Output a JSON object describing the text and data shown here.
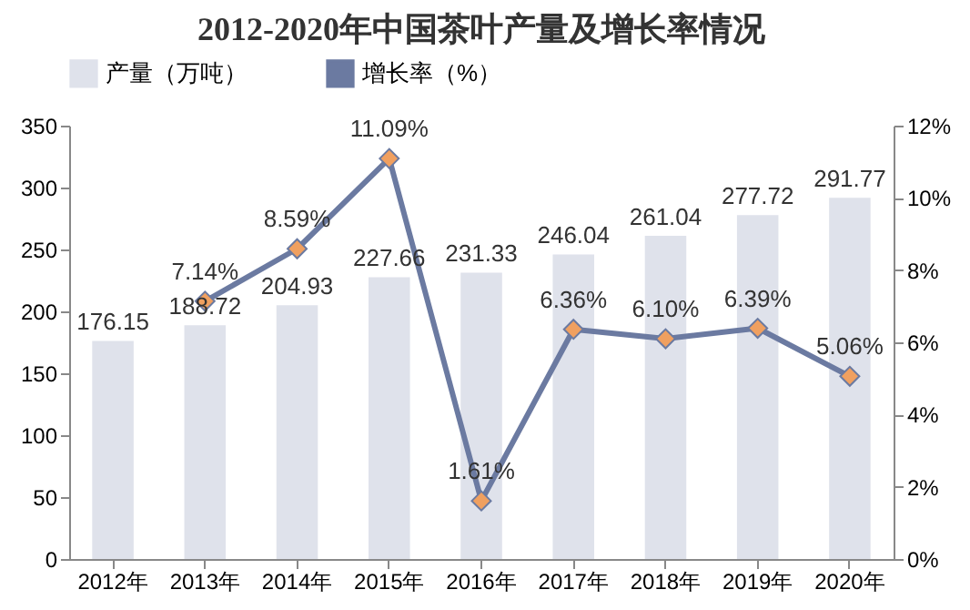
{
  "chart_data": {
    "type": "bar",
    "title": "2012-2020年中国茶叶产量及增长率情况",
    "categories": [
      "2012年",
      "2013年",
      "2014年",
      "2015年",
      "2016年",
      "2017年",
      "2018年",
      "2019年",
      "2020年"
    ],
    "series": [
      {
        "name": "产量（万吨）",
        "color": "#dfe2eb",
        "values": [
          176.15,
          188.72,
          204.93,
          227.66,
          231.33,
          246.04,
          261.04,
          277.72,
          291.77
        ],
        "value_labels": [
          "176.15",
          "188.72",
          "204.93",
          "227.66",
          "231.33",
          "246.04",
          "261.04",
          "277.72",
          "291.77"
        ]
      },
      {
        "name": "增长率（%）",
        "type": "line",
        "axis": "y2",
        "color": "#6b7aa1",
        "marker": "diamond",
        "values": [
          null,
          7.14,
          8.59,
          11.09,
          1.61,
          6.36,
          6.1,
          6.39,
          5.06
        ],
        "value_labels": [
          null,
          "7.14%",
          "8.59%",
          "11.09%",
          "1.61%",
          "6.36%",
          "6.10%",
          "6.39%",
          "5.06%"
        ]
      }
    ],
    "ylim": [
      0,
      350
    ],
    "yticks": [
      0,
      50,
      100,
      150,
      200,
      250,
      300,
      350
    ],
    "y2lim": [
      0,
      12
    ],
    "y2ticks": [
      {
        "value": 0,
        "label": "0%"
      },
      {
        "value": 2,
        "label": "2%"
      },
      {
        "value": 4,
        "label": "4%"
      },
      {
        "value": 6,
        "label": "6%"
      },
      {
        "value": 8,
        "label": "8%"
      },
      {
        "value": 10,
        "label": "10%"
      },
      {
        "value": 12,
        "label": "12%"
      }
    ],
    "legend": "top",
    "grid": false
  }
}
